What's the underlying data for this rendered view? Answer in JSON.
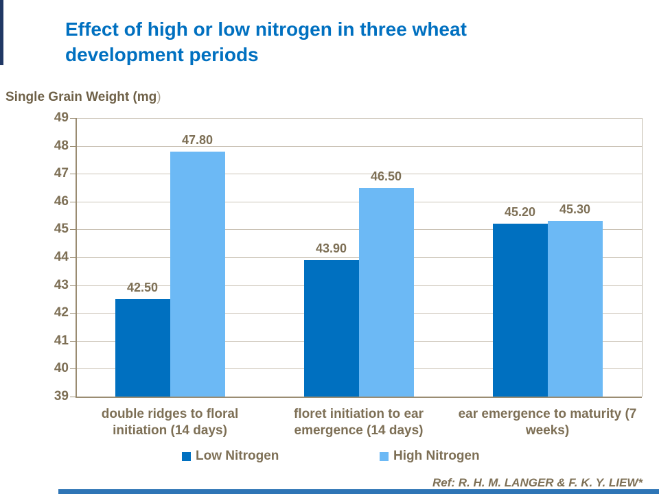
{
  "slide": {
    "title_line1": "Effect of high or low nitrogen in three wheat",
    "title_line2": "development periods",
    "reference": "Ref: R. H. M. LANGER & F. K. Y. LIEW*",
    "accent_colors": {
      "left_stripe": "#203864",
      "bottom_bar": "#2E75B6"
    }
  },
  "chart_data": {
    "type": "bar",
    "title": "Effect of high or low nitrogen in three wheat development periods",
    "axis_title_main": "Single Grain Weight (mg",
    "axis_title_paren": ")",
    "categories": [
      "double ridges to floral initiation (14 days)",
      "floret initiation to ear emergence (14 days)",
      "ear emergence to maturity (7 weeks)"
    ],
    "series": [
      {
        "name": "Low Nitrogen",
        "color": "#0070C0",
        "values": [
          42.5,
          43.9,
          45.2
        ],
        "labels": [
          "42.50",
          "43.90",
          "45.20"
        ]
      },
      {
        "name": "High Nitrogen",
        "color": "#6CB9F5",
        "values": [
          47.8,
          46.5,
          45.3
        ],
        "labels": [
          "47.80",
          "46.50",
          "45.30"
        ]
      }
    ],
    "ylim": [
      39,
      49
    ],
    "ytick_step": 1,
    "grid": true,
    "legend_position": "bottom",
    "style_colors": {
      "text_brown": "#7D6F55",
      "gridline": "#CBC3B6",
      "axis_line": "#9A8C72",
      "title_blue": "#0070C0"
    }
  }
}
